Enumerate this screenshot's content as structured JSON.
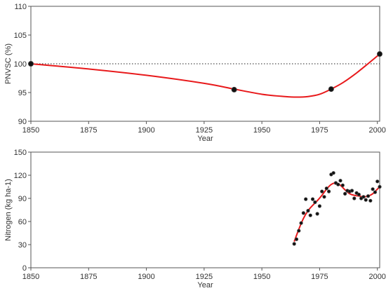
{
  "chart_data": [
    {
      "type": "line",
      "xlabel": "Year",
      "ylabel": "PNVSC (%)",
      "xlim": [
        1850,
        2001
      ],
      "ylim": [
        90,
        110
      ],
      "xticks": [
        1850,
        1875,
        1900,
        1925,
        1950,
        1975,
        2000
      ],
      "yticks": [
        90,
        95,
        100,
        105,
        110
      ],
      "reference_line": {
        "y": 100,
        "style": "dotted"
      },
      "series": [
        {
          "kind": "points",
          "x": [
            1850,
            1938,
            1980,
            2001
          ],
          "y": [
            100.0,
            95.5,
            95.6,
            101.7
          ]
        },
        {
          "kind": "fit_curve",
          "color": "#e8191b",
          "x": [
            1850,
            1875,
            1900,
            1925,
            1938,
            1950,
            1960,
            1965,
            1970,
            1975,
            1980,
            1985,
            1990,
            1995,
            2001
          ],
          "y": [
            100.0,
            99.1,
            98.0,
            96.6,
            95.6,
            94.7,
            94.3,
            94.2,
            94.3,
            94.7,
            95.6,
            96.7,
            98.1,
            99.7,
            101.7
          ]
        }
      ]
    },
    {
      "type": "scatter",
      "xlabel": "Year",
      "ylabel": "Nitrogen (kg ha-1)",
      "xlim": [
        1850,
        2001
      ],
      "ylim": [
        0,
        150
      ],
      "xticks": [
        1850,
        1875,
        1900,
        1925,
        1950,
        1975,
        2000
      ],
      "yticks": [
        0,
        30,
        60,
        90,
        120,
        150
      ],
      "series": [
        {
          "kind": "points",
          "x": [
            1964,
            1965,
            1966,
            1967,
            1968,
            1969,
            1970,
            1971,
            1972,
            1973,
            1974,
            1975,
            1976,
            1977,
            1978,
            1979,
            1980,
            1981,
            1982,
            1983,
            1984,
            1985,
            1986,
            1987,
            1988,
            1989,
            1990,
            1991,
            1992,
            1993,
            1994,
            1995,
            1996,
            1997,
            1998,
            1999,
            2000,
            2001
          ],
          "y": [
            31,
            37,
            48,
            58,
            71,
            89,
            74,
            68,
            89,
            85,
            70,
            80,
            99,
            92,
            103,
            99,
            121,
            123,
            110,
            108,
            113,
            107,
            96,
            100,
            99,
            100,
            90,
            97,
            95,
            90,
            92,
            88,
            93,
            87,
            102,
            98,
            112,
            105
          ]
        },
        {
          "kind": "fit_curve",
          "color": "#e8191b",
          "x": [
            1964,
            1966,
            1968,
            1970,
            1972,
            1974,
            1976,
            1978,
            1980,
            1982,
            1984,
            1986,
            1988,
            1990,
            1992,
            1994,
            1996,
            1998,
            2000,
            2001
          ],
          "y": [
            34,
            50,
            64,
            74,
            81,
            87,
            94,
            102,
            108,
            110,
            107,
            101,
            96,
            94,
            93,
            92,
            93,
            96,
            102,
            105
          ]
        }
      ]
    }
  ]
}
